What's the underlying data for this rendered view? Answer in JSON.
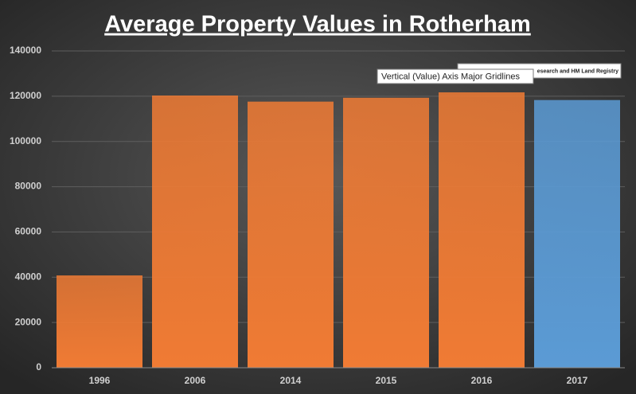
{
  "chart_data": {
    "type": "bar",
    "title": "Average Property Values in Rotherham",
    "categories": [
      "1996",
      "2006",
      "2014",
      "2015",
      "2016",
      "2017"
    ],
    "values": [
      40800,
      120300,
      117600,
      119300,
      121700,
      118300
    ],
    "colors": [
      "#f07b34",
      "#f07b34",
      "#f07b34",
      "#f07b34",
      "#f07b34",
      "#5b9bd5"
    ],
    "ylim": [
      0,
      140000
    ],
    "yticks": [
      0,
      20000,
      40000,
      60000,
      80000,
      100000,
      120000,
      140000
    ],
    "grid": true,
    "annotation": "esearch and HM Land Registry",
    "tooltip": "Vertical (Value) Axis Major Gridlines"
  }
}
